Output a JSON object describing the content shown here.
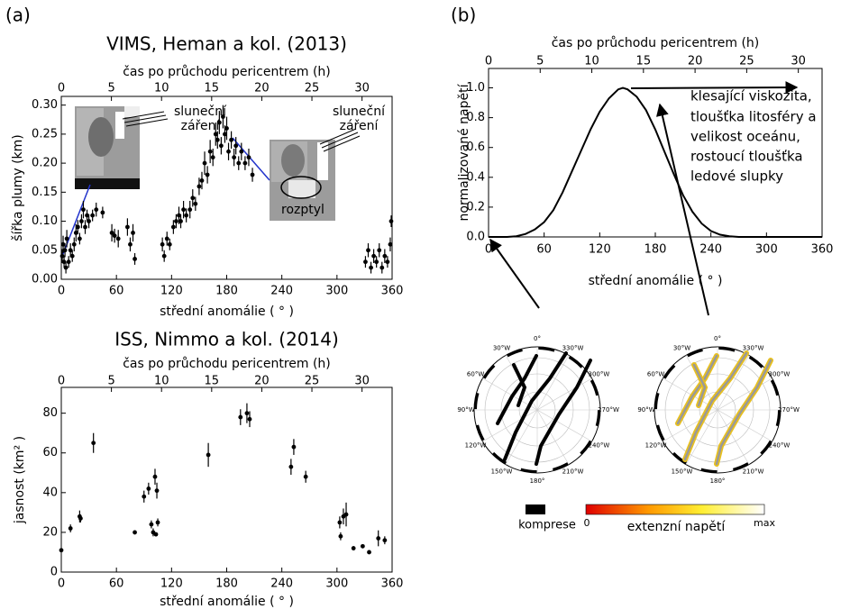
{
  "panels": [
    "(a)",
    "(b)"
  ],
  "chart_data": [
    {
      "type": "scatter",
      "title": "VIMS, Heman a kol. (2013)",
      "x2label": "čas po průchodu pericentrem (h)",
      "xlabel": "střední anomálie ( ° )",
      "ylabel": "šířka plumy (km)",
      "color": "#000000",
      "x": [
        1,
        2,
        3,
        4,
        5,
        6,
        8,
        10,
        12,
        14,
        16,
        18,
        20,
        22,
        24,
        26,
        28,
        30,
        34,
        38,
        45,
        55,
        58,
        62,
        72,
        75,
        78,
        80,
        110,
        112,
        115,
        118,
        122,
        125,
        128,
        130,
        133,
        136,
        140,
        143,
        146,
        150,
        153,
        156,
        159,
        162,
        165,
        168,
        170,
        172,
        174,
        176,
        178,
        180,
        182,
        185,
        188,
        190,
        193,
        196,
        200,
        204,
        208,
        331,
        334,
        337,
        340,
        343,
        346,
        349,
        352,
        355,
        358,
        359
      ],
      "values": [
        0.04,
        0.06,
        0.03,
        0.05,
        0.02,
        0.07,
        0.03,
        0.05,
        0.04,
        0.06,
        0.08,
        0.09,
        0.07,
        0.1,
        0.12,
        0.09,
        0.11,
        0.1,
        0.11,
        0.12,
        0.115,
        0.08,
        0.075,
        0.07,
        0.09,
        0.06,
        0.08,
        0.035,
        0.06,
        0.04,
        0.07,
        0.06,
        0.09,
        0.1,
        0.11,
        0.1,
        0.12,
        0.11,
        0.12,
        0.14,
        0.13,
        0.16,
        0.17,
        0.2,
        0.18,
        0.22,
        0.21,
        0.25,
        0.24,
        0.27,
        0.23,
        0.28,
        0.25,
        0.26,
        0.22,
        0.24,
        0.21,
        0.23,
        0.2,
        0.22,
        0.2,
        0.21,
        0.18,
        0.03,
        0.05,
        0.02,
        0.04,
        0.03,
        0.05,
        0.02,
        0.04,
        0.03,
        0.06,
        0.1
      ],
      "errors": [
        0.012,
        0.015,
        0.01,
        0.012,
        0.01,
        0.015,
        0.01,
        0.012,
        0.01,
        0.012,
        0.015,
        0.012,
        0.01,
        0.012,
        0.015,
        0.012,
        0.01,
        0.012,
        0.01,
        0.012,
        0.01,
        0.015,
        0.012,
        0.015,
        0.015,
        0.012,
        0.015,
        0.01,
        0.012,
        0.01,
        0.012,
        0.01,
        0.012,
        0.012,
        0.015,
        0.012,
        0.015,
        0.012,
        0.015,
        0.015,
        0.012,
        0.015,
        0.015,
        0.02,
        0.015,
        0.02,
        0.015,
        0.02,
        0.015,
        0.02,
        0.015,
        0.02,
        0.015,
        0.02,
        0.015,
        0.015,
        0.015,
        0.015,
        0.012,
        0.015,
        0.012,
        0.015,
        0.012,
        0.01,
        0.012,
        0.01,
        0.012,
        0.01,
        0.012,
        0.01,
        0.012,
        0.01,
        0.012,
        0.01
      ],
      "xlim": [
        0,
        360
      ],
      "xticks": [
        0,
        60,
        120,
        180,
        240,
        300,
        360
      ],
      "x2lim": [
        0,
        33
      ],
      "x2ticks": [
        0,
        5,
        10,
        15,
        20,
        25,
        30
      ],
      "ylim": [
        0,
        0.315
      ],
      "yticks": [
        {
          "value": 0,
          "label": "0.00"
        },
        {
          "value": 0.05,
          "label": "0.05"
        },
        {
          "value": 0.1,
          "label": "0.10"
        },
        {
          "value": 0.15,
          "label": "0.15"
        },
        {
          "value": 0.2,
          "label": "0.20"
        },
        {
          "value": 0.25,
          "label": "0.25"
        },
        {
          "value": 0.3,
          "label": "0.30"
        }
      ],
      "annotations": [
        "sluneční",
        "záření",
        "sluneční",
        "záření",
        "rozptyl"
      ]
    },
    {
      "type": "scatter",
      "title": "ISS, Nimmo a kol. (2014)",
      "x2label": "čas po průchodu pericentrem (h)",
      "xlabel": "střední anomálie ( ° )",
      "ylabel": "jasnost (km² )",
      "color": "#000000",
      "x": [
        0,
        10,
        20,
        21,
        35,
        80,
        90,
        95,
        98,
        100,
        102,
        103,
        104,
        105,
        160,
        195,
        202,
        205,
        250,
        253,
        266,
        303,
        304,
        307,
        310,
        318,
        328,
        335,
        345,
        352
      ],
      "values": [
        11,
        22,
        28,
        27,
        65,
        20,
        38,
        42,
        24,
        20,
        48,
        19,
        41,
        25,
        59,
        78,
        80,
        77,
        53,
        63,
        48,
        25,
        18,
        28,
        29,
        12,
        13,
        10,
        17,
        16
      ],
      "errors": [
        1,
        2,
        3,
        2,
        5,
        1,
        3,
        3,
        2,
        2,
        4,
        1,
        4,
        2,
        6,
        4,
        5,
        4,
        4,
        4,
        3,
        3,
        2,
        4,
        6,
        1,
        1,
        1,
        4,
        2
      ],
      "xlim": [
        0,
        360
      ],
      "xticks": [
        0,
        60,
        120,
        180,
        240,
        300,
        360
      ],
      "x2lim": [
        0,
        33
      ],
      "x2ticks": [
        0,
        5,
        10,
        15,
        20,
        25,
        30
      ],
      "ylim": [
        0,
        93
      ],
      "yticks": [
        0,
        20,
        40,
        60,
        80
      ]
    },
    {
      "type": "line",
      "x2label": "čas po průchodu pericentrem (h)",
      "xlabel": "střední anomálie ( ° )",
      "ylabel": "normalizované napětí",
      "color": "#000000",
      "x": [
        0,
        20,
        30,
        40,
        50,
        60,
        70,
        80,
        90,
        100,
        110,
        120,
        130,
        140,
        145,
        150,
        160,
        170,
        180,
        190,
        200,
        210,
        220,
        230,
        240,
        250,
        260,
        270,
        280,
        300,
        330,
        360
      ],
      "values": [
        0,
        0,
        0.005,
        0.02,
        0.05,
        0.1,
        0.18,
        0.3,
        0.44,
        0.58,
        0.72,
        0.84,
        0.93,
        0.99,
        1.0,
        0.99,
        0.94,
        0.85,
        0.72,
        0.57,
        0.42,
        0.28,
        0.17,
        0.09,
        0.04,
        0.015,
        0.005,
        0,
        0,
        0,
        0,
        0
      ],
      "xlim": [
        0,
        360
      ],
      "xticks": [
        0,
        60,
        120,
        180,
        240,
        300,
        360
      ],
      "x2lim": [
        0,
        32.3
      ],
      "x2ticks": [
        0,
        5,
        10,
        15,
        20,
        25,
        30
      ],
      "ylim": [
        0,
        1.13
      ],
      "yticks": [
        {
          "value": 0,
          "label": "0.0"
        },
        {
          "value": 0.2,
          "label": "0.2"
        },
        {
          "value": 0.4,
          "label": "0.4"
        },
        {
          "value": 0.6,
          "label": "0.6"
        },
        {
          "value": 0.8,
          "label": "0.8"
        },
        {
          "value": 1,
          "label": "1.0"
        }
      ],
      "annotations": [
        "klesající viskozita,",
        "tloušťka litosféry a",
        "velikost oceánu,",
        "rostoucí tloušťka",
        "ledové slupky"
      ]
    }
  ],
  "maps": {
    "labels": [
      "0°",
      "30°W",
      "60°W",
      "90°W",
      "120°W",
      "150°W",
      "180°",
      "210°W",
      "240°W",
      "270°W",
      "300°W",
      "330°W"
    ],
    "colorbar": {
      "compression": "komprese",
      "min": "0",
      "label": "extenzní napětí",
      "max": "max"
    }
  }
}
